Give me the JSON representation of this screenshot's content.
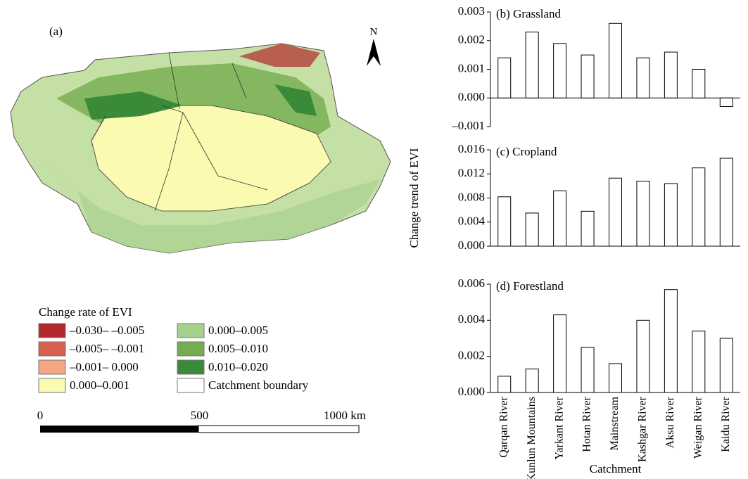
{
  "map": {
    "label": "(a)",
    "north": "N",
    "legend_title": "Change rate of EVI",
    "legend": [
      {
        "label": "–0.030– –0.005",
        "color": "#b2282c"
      },
      {
        "label": "–0.005– –0.001",
        "color": "#d6604d"
      },
      {
        "label": "–0.001– 0.000",
        "color": "#f4a582"
      },
      {
        "label": "0.000–0.001",
        "color": "#fafab0"
      },
      {
        "label": "0.000–0.005",
        "color": "#a8d08d"
      },
      {
        "label": "0.005–0.010",
        "color": "#74ad4f"
      },
      {
        "label": "0.010–0.020",
        "color": "#3a8a3a"
      },
      {
        "label": "Catchment boundary",
        "color": "#ffffff"
      }
    ],
    "scale_ticks": [
      0,
      500,
      {
        "value": 1000,
        "label": "1000 km"
      }
    ]
  },
  "chart_data": [
    {
      "type": "bar",
      "title": "(b) Grassland",
      "values": [
        0.0014,
        0.0023,
        0.0019,
        0.0015,
        0.0026,
        0.0014,
        0.0016,
        0.001,
        -0.0003
      ],
      "color": "#ffffff",
      "edgecolor": "#000000",
      "ylim": [
        -0.001,
        0.003
      ],
      "yticks": [
        {
          "value": -0.001,
          "label": "–0.001"
        },
        {
          "value": 0,
          "label": "0.000"
        },
        {
          "value": 0.001,
          "label": "0.001"
        },
        {
          "value": 0.002,
          "label": "0.002"
        },
        {
          "value": 0.003,
          "label": "0.003"
        }
      ]
    },
    {
      "type": "bar",
      "title": "(c) Cropland",
      "y_label": "Change trend of EVI",
      "values": [
        0.0082,
        0.0055,
        0.0092,
        0.0058,
        0.0113,
        0.0108,
        0.0104,
        0.013,
        0.0146
      ],
      "color": "#ffffff",
      "edgecolor": "#000000",
      "ylim": [
        0,
        0.016
      ],
      "yticks": [
        {
          "value": 0,
          "label": "0.000"
        },
        {
          "value": 0.004,
          "label": "0.004"
        },
        {
          "value": 0.008,
          "label": "0.008"
        },
        {
          "value": 0.012,
          "label": "0.012"
        },
        {
          "value": 0.016,
          "label": "0.016"
        }
      ]
    },
    {
      "type": "bar",
      "title": "(d) Forestland",
      "x_label": "Catchment",
      "categories": [
        "Qarqan River",
        "Kunlun Mountains",
        "Yarkant River",
        "Hotan River",
        "Mainstream",
        "Kashgar River",
        "Aksu River",
        "Weigan River",
        "Kaidu River"
      ],
      "values": [
        0.0009,
        0.0013,
        0.0043,
        0.0025,
        0.0016,
        0.004,
        0.0057,
        0.0034,
        0.003
      ],
      "color": "#ffffff",
      "edgecolor": "#000000",
      "ylim": [
        0,
        0.006
      ],
      "yticks": [
        {
          "value": 0,
          "label": "0.000"
        },
        {
          "value": 0.002,
          "label": "0.002"
        },
        {
          "value": 0.004,
          "label": "0.004"
        },
        {
          "value": 0.006,
          "label": "0.006"
        }
      ]
    }
  ]
}
